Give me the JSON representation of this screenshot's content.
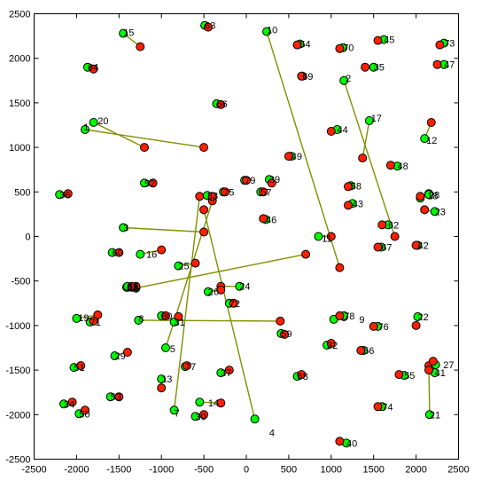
{
  "chart_data": {
    "type": "line",
    "title": "",
    "xlabel": "",
    "ylabel": "",
    "xlim": [
      -2500,
      2500
    ],
    "ylim": [
      -2500,
      2500
    ],
    "xticks": [
      -2500,
      -2000,
      -1500,
      -1000,
      -500,
      0,
      500,
      1000,
      1500,
      2000,
      2500
    ],
    "yticks": [
      -2500,
      -2000,
      -1500,
      -1000,
      -500,
      0,
      500,
      1000,
      1500,
      2000,
      2500
    ],
    "grid": false,
    "legend": "none",
    "colors": {
      "start": "#00ff00",
      "end": "#ff2000",
      "point_edge": "#000000"
    },
    "series": [
      {
        "name": "1",
        "start": [
          -1900,
          1200
        ],
        "end": [
          -500,
          1000
        ],
        "label": [
          -1920,
          1230
        ]
      },
      {
        "name": "2",
        "start": [
          1150,
          1750
        ],
        "end": [
          1750,
          0
        ],
        "label": [
          1170,
          1780
        ]
      },
      {
        "name": "3",
        "start": [
          -1450,
          100
        ],
        "end": [
          -500,
          50
        ],
        "label": [
          -1450,
          100
        ]
      },
      {
        "name": "4",
        "start": [
          100,
          -2050
        ],
        "end": [
          -500,
          300
        ],
        "label": [
          270,
          -2200
        ]
      },
      {
        "name": "5",
        "start": [
          -950,
          -1250
        ],
        "end": [
          -400,
          400
        ],
        "label": [
          -900,
          -1260
        ]
      },
      {
        "name": "6",
        "start": [
          -1300,
          -580
        ],
        "end": [
          700,
          -200
        ],
        "label": [
          -1330,
          -580
        ]
      },
      {
        "name": "7",
        "start": [
          -850,
          -1950
        ],
        "end": [
          -550,
          450
        ],
        "label": [
          -850,
          -1980
        ]
      },
      {
        "name": "8",
        "start": [
          -1270,
          -940
        ],
        "end": [
          400,
          -950
        ],
        "label": [
          -1270,
          -920
        ]
      },
      {
        "name": "9",
        "start": [
          1030,
          -930
        ],
        "end": [
          1150,
          -900
        ],
        "label": [
          1330,
          -930
        ]
      },
      {
        "name": "10",
        "start": [
          240,
          2300
        ],
        "end": [
          1100,
          -350
        ],
        "label": [
          240,
          2320
        ]
      },
      {
        "name": "11",
        "start": [
          850,
          0
        ],
        "end": [
          1000,
          0
        ],
        "label": [
          890,
          -20
        ]
      },
      {
        "name": "12",
        "start": [
          2100,
          1100
        ],
        "end": [
          2180,
          1280
        ],
        "label": [
          2120,
          1080
        ]
      },
      {
        "name": "13",
        "start": [
          -1000,
          -1600
        ],
        "end": [
          -1000,
          -1700
        ],
        "label": [
          -1000,
          -1600
        ]
      },
      {
        "name": "14",
        "start": [
          -550,
          -1860
        ],
        "end": [
          -300,
          -1870
        ],
        "label": [
          -450,
          -1870
        ]
      },
      {
        "name": "15",
        "start": [
          -1450,
          2280
        ],
        "end": [
          -1250,
          2130
        ],
        "label": [
          -1450,
          2290
        ]
      },
      {
        "name": "16",
        "start": [
          -1250,
          -200
        ],
        "end": [
          -1000,
          -150
        ],
        "label": [
          -1180,
          -200
        ]
      },
      {
        "name": "17",
        "start": [
          1450,
          1300
        ],
        "end": [
          1370,
          880
        ],
        "label": [
          1470,
          1330
        ]
      },
      {
        "name": "18",
        "start": [
          2050,
          430
        ],
        "end": [
          2150,
          480
        ],
        "label": [
          2130,
          460
        ]
      },
      {
        "name": "19",
        "start": [
          -2000,
          -920
        ],
        "end": [
          -1750,
          -880
        ],
        "label": [
          -1980,
          -910
        ]
      },
      {
        "name": "20",
        "start": [
          -1800,
          1280
        ],
        "end": [
          -1200,
          1000
        ],
        "label": [
          -1750,
          1300
        ]
      },
      {
        "name": "21",
        "start": [
          2160,
          -2000
        ],
        "end": [
          2150,
          -1450
        ],
        "label": [
          2160,
          -2000
        ]
      },
      {
        "name": "22",
        "start": [
          2020,
          -900
        ],
        "end": [
          2000,
          -1000
        ],
        "label": [
          2020,
          -900
        ]
      },
      {
        "name": "23",
        "start": [
          2220,
          280
        ],
        "end": [
          2100,
          300
        ],
        "label": [
          2220,
          280
        ]
      },
      {
        "name": "24",
        "start": [
          -80,
          -560
        ],
        "end": [
          -300,
          -560
        ],
        "label": [
          -80,
          -560
        ]
      },
      {
        "name": "25",
        "start": [
          -800,
          -330
        ],
        "end": [
          -600,
          -300
        ],
        "label": [
          -800,
          -330
        ]
      },
      {
        "name": "26",
        "start": [
          -450,
          -620
        ],
        "end": [
          -300,
          -600
        ],
        "label": [
          -450,
          -620
        ]
      },
      {
        "name": "27",
        "start": [
          2230,
          -1440
        ],
        "end": [
          2200,
          -1400
        ],
        "label": [
          2320,
          -1440
        ]
      },
      {
        "name": "28",
        "start": [
          2150,
          470
        ],
        "end": [
          2050,
          450
        ],
        "label": [
          2150,
          470
        ]
      },
      {
        "name": "29",
        "start": [
          -1550,
          -1340
        ],
        "end": [
          -1400,
          -1300
        ],
        "label": [
          -1550,
          -1340
        ]
      },
      {
        "name": "30",
        "start": [
          -600,
          -2020
        ],
        "end": [
          -500,
          -2000
        ],
        "label": [
          -600,
          -2020
        ]
      },
      {
        "name": "31",
        "start": [
          -850,
          -960
        ],
        "end": [
          -800,
          -900
        ],
        "label": [
          -850,
          -960
        ]
      },
      {
        "name": "32",
        "start": [
          950,
          -1220
        ],
        "end": [
          1000,
          -1200
        ],
        "label": [
          950,
          -1220
        ]
      },
      {
        "name": "33",
        "start": [
          -460,
          460
        ],
        "end": [
          -400,
          450
        ],
        "label": [
          -460,
          460
        ]
      },
      {
        "name": "34",
        "start": [
          -2150,
          -1880
        ],
        "end": [
          -2050,
          -1860
        ],
        "label": [
          -2150,
          -1880
        ]
      },
      {
        "name": "35",
        "start": [
          1500,
          1900
        ],
        "end": [
          1400,
          1900
        ],
        "label": [
          1500,
          1900
        ]
      },
      {
        "name": "36",
        "start": [
          -2200,
          470
        ],
        "end": [
          -2100,
          480
        ],
        "label": [
          -2200,
          470
        ]
      },
      {
        "name": "37",
        "start": [
          -300,
          -1530
        ],
        "end": [
          -200,
          -1500
        ],
        "label": [
          -300,
          -1530
        ]
      },
      {
        "name": "38",
        "start": [
          -1400,
          -570
        ],
        "end": [
          -1300,
          -560
        ],
        "label": [
          -1400,
          -570
        ]
      },
      {
        "name": "39",
        "start": [
          270,
          640
        ],
        "end": [
          300,
          600
        ],
        "label": [
          270,
          640
        ]
      },
      {
        "name": "40",
        "start": [
          1180,
          -2320
        ],
        "end": [
          1100,
          -2300
        ],
        "label": [
          1180,
          -2320
        ]
      },
      {
        "name": "41",
        "start": [
          2220,
          -1530
        ],
        "end": [
          2150,
          -1500
        ],
        "label": [
          2220,
          -1530
        ]
      },
      {
        "name": "42",
        "start": [
          2020,
          -100
        ],
        "end": [
          2000,
          -100
        ],
        "label": [
          2020,
          -100
        ]
      },
      {
        "name": "43",
        "start": [
          1250,
          370
        ],
        "end": [
          1200,
          350
        ],
        "label": [
          1250,
          370
        ]
      },
      {
        "name": "44",
        "start": [
          1070,
          1200
        ],
        "end": [
          1000,
          1180
        ],
        "label": [
          1070,
          1200
        ]
      },
      {
        "name": "45",
        "start": [
          1620,
          2210
        ],
        "end": [
          1550,
          2200
        ],
        "label": [
          1620,
          2210
        ]
      },
      {
        "name": "46",
        "start": [
          230,
          190
        ],
        "end": [
          200,
          200
        ],
        "label": [
          230,
          190
        ]
      },
      {
        "name": "47",
        "start": [
          2330,
          1930
        ],
        "end": [
          2250,
          1930
        ],
        "label": [
          2330,
          1930
        ]
      },
      {
        "name": "48",
        "start": [
          1780,
          790
        ],
        "end": [
          1700,
          800
        ],
        "label": [
          1780,
          790
        ]
      },
      {
        "name": "49",
        "start": [
          530,
          900
        ],
        "end": [
          500,
          900
        ],
        "label": [
          530,
          900
        ]
      },
      {
        "name": "50",
        "start": [
          -1970,
          -1990
        ],
        "end": [
          -1900,
          -1950
        ],
        "label": [
          -1970,
          -1990
        ]
      },
      {
        "name": "51",
        "start": [
          -2030,
          -1470
        ],
        "end": [
          -1950,
          -1450
        ],
        "label": [
          -2030,
          -1470
        ]
      },
      {
        "name": "52",
        "start": [
          -1200,
          600
        ],
        "end": [
          -1100,
          600
        ],
        "label": [
          -1200,
          600
        ]
      },
      {
        "name": "53",
        "start": [
          -1600,
          -1800
        ],
        "end": [
          -1500,
          -1800
        ],
        "label": [
          -1600,
          -1800
        ]
      },
      {
        "name": "54",
        "start": [
          630,
          2160
        ],
        "end": [
          600,
          2150
        ],
        "label": [
          630,
          2160
        ]
      },
      {
        "name": "55",
        "start": [
          1860,
          -1560
        ],
        "end": [
          1800,
          -1550
        ],
        "label": [
          1860,
          -1560
        ]
      },
      {
        "name": "56",
        "start": [
          1380,
          -1280
        ],
        "end": [
          1350,
          -1280
        ],
        "label": [
          1380,
          -1280
        ]
      },
      {
        "name": "57",
        "start": [
          170,
          500
        ],
        "end": [
          200,
          500
        ],
        "label": [
          170,
          500
        ]
      },
      {
        "name": "58",
        "start": [
          1230,
          570
        ],
        "end": [
          1200,
          560
        ],
        "label": [
          1230,
          570
        ]
      },
      {
        "name": "59",
        "start": [
          410,
          -1090
        ],
        "end": [
          450,
          -1100
        ],
        "label": [
          410,
          -1090
        ]
      },
      {
        "name": "60",
        "start": [
          -1580,
          -180
        ],
        "end": [
          -1500,
          -180
        ],
        "label": [
          -1580,
          -180
        ]
      },
      {
        "name": "61",
        "start": [
          -1410,
          -570
        ],
        "end": [
          -1350,
          -570
        ],
        "label": [
          -1410,
          -570
        ]
      },
      {
        "name": "62",
        "start": [
          1670,
          130
        ],
        "end": [
          1600,
          130
        ],
        "label": [
          1670,
          130
        ]
      },
      {
        "name": "63",
        "start": [
          -490,
          2370
        ],
        "end": [
          -450,
          2350
        ],
        "label": [
          -490,
          2370
        ]
      },
      {
        "name": "64",
        "start": [
          -1870,
          1900
        ],
        "end": [
          -1800,
          1880
        ],
        "label": [
          -1870,
          1900
        ]
      },
      {
        "name": "65",
        "start": [
          -1400,
          -560
        ],
        "end": [
          -1350,
          -560
        ],
        "label": [
          -1400,
          -560
        ]
      },
      {
        "name": "66",
        "start": [
          -350,
          1490
        ],
        "end": [
          -300,
          1480
        ],
        "label": [
          -350,
          1490
        ]
      },
      {
        "name": "67",
        "start": [
          1590,
          -120
        ],
        "end": [
          1550,
          -120
        ],
        "label": [
          1590,
          -120
        ]
      },
      {
        "name": "68",
        "start": [
          600,
          -1570
        ],
        "end": [
          650,
          -1550
        ],
        "label": [
          600,
          -1570
        ]
      },
      {
        "name": "69",
        "start": [
          660,
          1800
        ],
        "end": [
          650,
          1800
        ],
        "label": [
          660,
          1800
        ]
      },
      {
        "name": "70",
        "start": [
          1140,
          2120
        ],
        "end": [
          1100,
          2110
        ],
        "label": [
          1140,
          2120
        ]
      },
      {
        "name": "71",
        "start": [
          -1840,
          -960
        ],
        "end": [
          -1800,
          -950
        ],
        "label": [
          -1840,
          -960
        ]
      },
      {
        "name": "72",
        "start": [
          -200,
          -750
        ],
        "end": [
          -150,
          -750
        ],
        "label": [
          -200,
          -750
        ]
      },
      {
        "name": "73",
        "start": [
          2330,
          2170
        ],
        "end": [
          2280,
          2150
        ],
        "label": [
          2330,
          2170
        ]
      },
      {
        "name": "74",
        "start": [
          1600,
          -1910
        ],
        "end": [
          1550,
          -1910
        ],
        "label": [
          1600,
          -1910
        ]
      },
      {
        "name": "75",
        "start": [
          -270,
          500
        ],
        "end": [
          -250,
          500
        ],
        "label": [
          -270,
          500
        ]
      },
      {
        "name": "76",
        "start": [
          1550,
          -1010
        ],
        "end": [
          1500,
          -1010
        ],
        "label": [
          1550,
          -1010
        ]
      },
      {
        "name": "77",
        "start": [
          -720,
          -1460
        ],
        "end": [
          -700,
          -1450
        ],
        "label": [
          -720,
          -1460
        ]
      },
      {
        "name": "78",
        "start": [
          1150,
          -890
        ],
        "end": [
          1100,
          -890
        ],
        "label": [
          1150,
          -890
        ]
      },
      {
        "name": "79",
        "start": [
          -20,
          630
        ],
        "end": [
          0,
          630
        ],
        "label": [
          -20,
          630
        ]
      },
      {
        "name": "80",
        "start": [
          -1000,
          -890
        ],
        "end": [
          -950,
          -890
        ],
        "label": [
          -1000,
          -890
        ]
      }
    ]
  }
}
